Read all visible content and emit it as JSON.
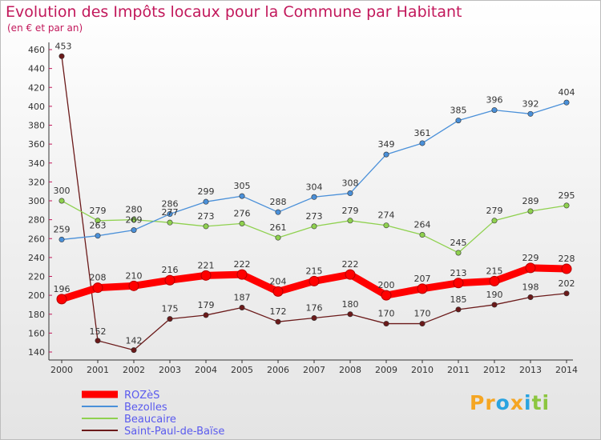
{
  "chart_data": {
    "type": "line",
    "title": "Evolution des Impôts locaux pour la Commune par Habitant",
    "subtitle": "(en € et par an)",
    "x": [
      "2000",
      "2001",
      "2002",
      "2003",
      "2004",
      "2005",
      "2006",
      "2007",
      "2008",
      "2009",
      "2010",
      "2011",
      "2012",
      "2013",
      "2014"
    ],
    "ylim": [
      140,
      460
    ],
    "yticks": [
      140,
      160,
      180,
      200,
      220,
      240,
      260,
      280,
      300,
      320,
      340,
      360,
      380,
      400,
      420,
      440,
      460
    ],
    "grid": false,
    "legend_position": "bottom-left",
    "series": [
      {
        "name": "ROZèS",
        "color": "#ff0000",
        "values": [
          196,
          208,
          210,
          216,
          221,
          222,
          204,
          215,
          222,
          200,
          207,
          213,
          215,
          229,
          228
        ]
      },
      {
        "name": "Bezolles",
        "color": "#4a90d9",
        "values": [
          259,
          263,
          269,
          286,
          299,
          305,
          288,
          304,
          308,
          349,
          361,
          385,
          396,
          392,
          404
        ]
      },
      {
        "name": "Beaucaire",
        "color": "#8fd14f",
        "values": [
          300,
          279,
          280,
          277,
          273,
          276,
          261,
          273,
          279,
          274,
          264,
          245,
          279,
          289,
          295
        ]
      },
      {
        "name": "Saint-Paul-de-Baïse",
        "color": "#6b1a1a",
        "values": [
          453,
          152,
          142,
          175,
          179,
          187,
          172,
          176,
          180,
          170,
          170,
          185,
          190,
          198,
          202
        ]
      }
    ]
  },
  "logo": {
    "text": "Proxiti",
    "letters": [
      "P",
      "r",
      "o",
      "x",
      "i",
      "t",
      "i"
    ],
    "colors": [
      "#f5a623",
      "#f5a623",
      "#29a3e0",
      "#f5a623",
      "#29a3e0",
      "#8cc63f",
      "#8cc63f"
    ]
  }
}
